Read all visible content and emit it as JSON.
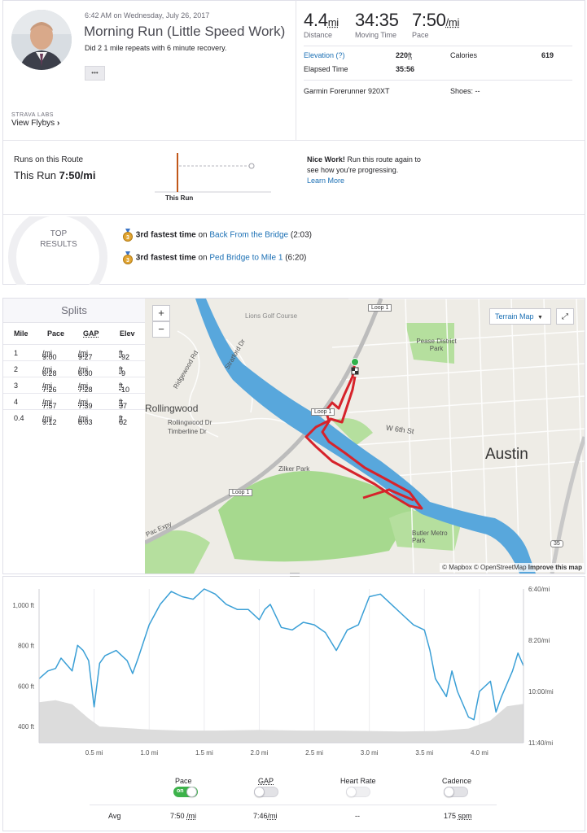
{
  "activity": {
    "datetime": "6:42 AM on Wednesday, July 26, 2017",
    "title": "Morning Run (Little Speed Work)",
    "description": "Did 2 1 mile repeats with 6 minute recovery.",
    "more_label": "•••"
  },
  "labs": {
    "label": "STRAVA LABS",
    "flybys_label": "View Flybys"
  },
  "stats": {
    "distance_value": "4.4",
    "distance_unit": "mi",
    "distance_label": "Distance",
    "moving_time_value": "34:35",
    "moving_time_label": "Moving Time",
    "pace_value": "7:50",
    "pace_unit": "/mi",
    "pace_label": "Pace",
    "elevation_label": "Elevation (?)",
    "elevation_value": "220",
    "elevation_unit": "ft",
    "calories_label": "Calories",
    "calories_value": "619",
    "elapsed_label": "Elapsed Time",
    "elapsed_value": "35:56",
    "device": "Garmin Forerunner 920XT",
    "shoes_label": "Shoes: --"
  },
  "route": {
    "heading": "Runs on this Route",
    "this_run_label": "This Run",
    "this_run_value": "7:50/mi",
    "chart_label": "This Run",
    "nice_work": "Nice Work!",
    "nice_work_text": " Run this route again to see how you're progressing.",
    "learn_more": "Learn More"
  },
  "top_results": {
    "heading_1": "TOP",
    "heading_2": "RESULTS",
    "items": [
      {
        "rank_text": "3rd fastest time",
        "on": " on ",
        "segment": "Back From the Bridge",
        "time": " (2:03)"
      },
      {
        "rank_text": "3rd fastest time",
        "on": " on ",
        "segment": "Ped Bridge to Mile 1",
        "time": " (6:20)"
      }
    ]
  },
  "splits": {
    "title": "Splits",
    "headers": [
      "Mile",
      "Pace",
      "GAP",
      "Elev"
    ],
    "rows": [
      {
        "mile": "1",
        "pace": "9:00",
        "gap": "9:27",
        "elev": "-92",
        "pu": "/mi",
        "eu": "ft"
      },
      {
        "mile": "2",
        "pace": "6:28",
        "gap": "6:30",
        "elev": "-9",
        "pu": "/mi",
        "eu": "ft"
      },
      {
        "mile": "3",
        "pace": "7:26",
        "gap": "7:28",
        "elev": "-10",
        "pu": "/mi",
        "eu": "ft"
      },
      {
        "mile": "4",
        "pace": "7:57",
        "gap": "7:39",
        "elev": "37",
        "pu": "/mi",
        "eu": "ft"
      },
      {
        "mile": "0.4",
        "pace": "9:12",
        "gap": "8:03",
        "elev": "62",
        "pu": "/mi",
        "eu": "ft"
      }
    ]
  },
  "map": {
    "zoom_in": "+",
    "zoom_out": "−",
    "terrain_label": "Terrain Map",
    "attribution_prefix": "© Mapbox © OpenStreetMap ",
    "attribution_link": "Improve this map",
    "labels": {
      "austin": "Austin",
      "rollingwood": "Rollingwood",
      "zilker": "Zilker Park",
      "pease": "Pease District Park",
      "w6th": "W 6th St",
      "butler": "Butler Metro Park",
      "lions": "Lions Golf Course",
      "loop1a": "Loop 1",
      "loop1b": "Loop 1",
      "loop1c": "Loop 1",
      "ridgewood": "Ridgewood Rd",
      "stratford": "Stratford Dr",
      "rollingwood_dr": "Rollingwood Dr",
      "timberline": "Timberline Dr",
      "pac_expy": "Pac Expy",
      "i35": "35"
    }
  },
  "colors": {
    "accent": "#fc5200",
    "link": "#1a6fb4",
    "pace_line": "#3a9fd6",
    "elevation_fill": "#dcdcdc",
    "route": "#d6232b",
    "water": "#4a9ed6",
    "park": "#8fcf7a",
    "toggle_on": "#3cb24a"
  },
  "chart_data": {
    "type": "area",
    "title": "",
    "x_axis": {
      "label": "mi",
      "ticks": [
        "0.5 mi",
        "1.0 mi",
        "1.5 mi",
        "2.0 mi",
        "2.5 mi",
        "3.0 mi",
        "3.5 mi",
        "4.0 mi"
      ],
      "range": [
        0,
        4.4
      ]
    },
    "y_left": {
      "label": "Elevation",
      "ticks": [
        "1,000 ft",
        "800 ft",
        "600 ft",
        "400 ft"
      ],
      "range": [
        320,
        1080
      ]
    },
    "y_right": {
      "label": "Pace",
      "ticks": [
        "6:40/mi",
        "8:20/mi",
        "10:00/mi",
        "11:40/mi"
      ],
      "range_seconds_per_mi": [
        400,
        700
      ],
      "inverted": true
    },
    "series": [
      {
        "name": "Elevation",
        "unit": "ft",
        "x": [
          0,
          0.15,
          0.3,
          0.45,
          0.55,
          0.7,
          1.0,
          1.3,
          1.6,
          2.0,
          2.4,
          2.7,
          3.0,
          3.3,
          3.6,
          3.9,
          4.1,
          4.25,
          4.4
        ],
        "values": [
          520,
          530,
          510,
          440,
          400,
          395,
          385,
          380,
          380,
          383,
          380,
          380,
          378,
          375,
          378,
          390,
          430,
          500,
          512
        ]
      },
      {
        "name": "Pace",
        "unit": "s/mi",
        "x": [
          0,
          0.08,
          0.15,
          0.2,
          0.3,
          0.35,
          0.4,
          0.45,
          0.5,
          0.55,
          0.6,
          0.7,
          0.8,
          0.85,
          0.9,
          1.0,
          1.1,
          1.2,
          1.3,
          1.4,
          1.5,
          1.6,
          1.7,
          1.8,
          1.9,
          2.0,
          2.05,
          2.1,
          2.2,
          2.3,
          2.4,
          2.5,
          2.6,
          2.7,
          2.8,
          2.9,
          3.0,
          3.1,
          3.2,
          3.3,
          3.4,
          3.5,
          3.55,
          3.6,
          3.7,
          3.75,
          3.8,
          3.9,
          3.95,
          4.0,
          4.1,
          4.15,
          4.2,
          4.3,
          4.35,
          4.4
        ],
        "values": [
          575,
          560,
          555,
          535,
          560,
          510,
          520,
          540,
          630,
          545,
          530,
          520,
          540,
          565,
          535,
          470,
          430,
          405,
          415,
          420,
          400,
          410,
          430,
          440,
          440,
          460,
          440,
          430,
          475,
          480,
          465,
          470,
          485,
          520,
          480,
          470,
          415,
          410,
          430,
          450,
          470,
          480,
          520,
          575,
          610,
          560,
          600,
          650,
          655,
          600,
          580,
          640,
          610,
          560,
          525,
          550
        ]
      }
    ]
  },
  "toggles": {
    "pace_label": "Pace",
    "pace_state": "on",
    "gap_label": "GAP",
    "hr_label": "Heart Rate",
    "cadence_label": "Cadence"
  },
  "averages": {
    "avg_label": "Avg",
    "pace": "7:50",
    "pace_unit": "/mi",
    "gap": "7:46",
    "gap_unit": "/mi",
    "hr": "--",
    "cadence": "175",
    "cadence_unit": "spm"
  }
}
